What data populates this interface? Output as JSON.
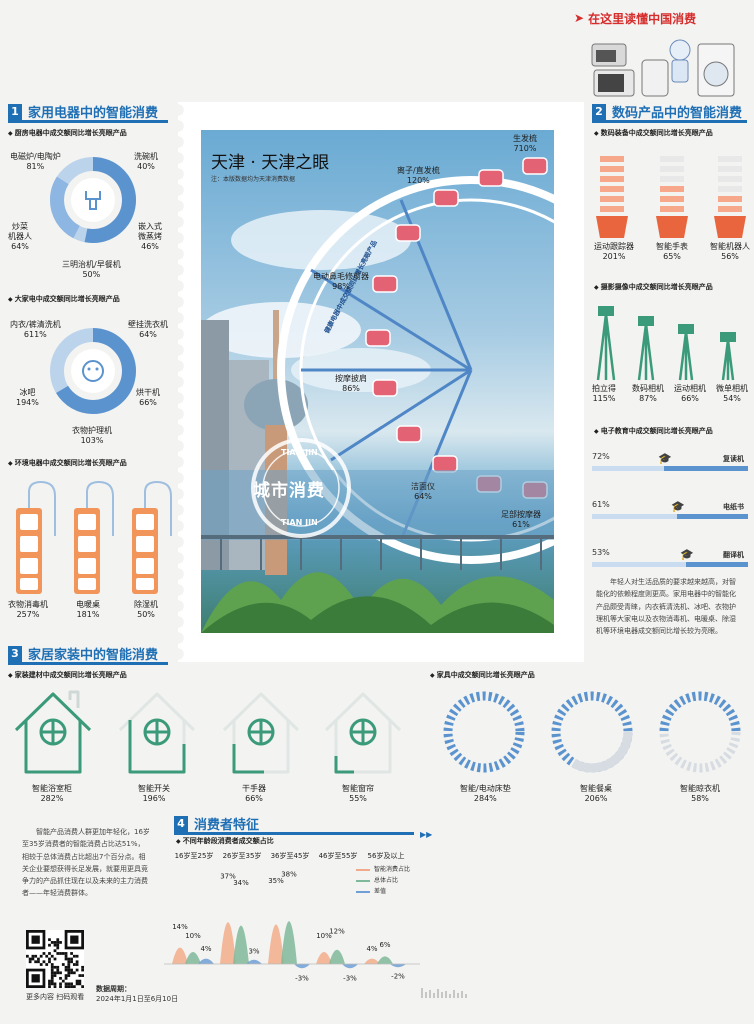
{
  "header": {
    "title": "在这里读懂中国消费"
  },
  "sections": {
    "s1": {
      "num": "1",
      "title": "家用电器中的智能消费"
    },
    "s2": {
      "num": "2",
      "title": "数码产品中的智能消费"
    },
    "s3": {
      "num": "3",
      "title": "家居家装中的智能消费"
    },
    "s4": {
      "num": "4",
      "title": "消费者特征"
    }
  },
  "kitchen": {
    "title": "厨房电器中成交额同比增长亮眼产品",
    "items": [
      {
        "name": "电磁炉/电陶炉",
        "value": "81%"
      },
      {
        "name": "洗碗机",
        "value": "40%"
      },
      {
        "name": "炒菜\n机器人",
        "value": "64%"
      },
      {
        "name": "嵌入式\n微蒸烤",
        "value": "46%"
      },
      {
        "name": "三明治机/早餐机",
        "value": "50%"
      }
    ]
  },
  "large_appliance": {
    "title": "大家电中成交额同比增长亮眼产品",
    "items": [
      {
        "name": "内衣/裤清洗机",
        "value": "611%"
      },
      {
        "name": "壁挂洗衣机",
        "value": "64%"
      },
      {
        "name": "冰吧",
        "value": "194%"
      },
      {
        "name": "烘干机",
        "value": "66%"
      },
      {
        "name": "衣物护理机",
        "value": "103%"
      }
    ]
  },
  "env_appliance": {
    "title": "环境电器中成交额同比增长亮眼产品",
    "items": [
      {
        "name": "衣物消毒机",
        "value": "257%"
      },
      {
        "name": "电暖桌",
        "value": "181%"
      },
      {
        "name": "除湿机",
        "value": "50%"
      }
    ]
  },
  "stamp": {
    "title": "天津 · 天津之眼",
    "note": "注：本版数据均为天津消费数据",
    "wheel_text": "健康电器中成交额同比增长亮眼产品",
    "seal_top": "TIAN JIN",
    "seal_mid": "城市消费",
    "seal_bottom": "TIAN JIN",
    "items": [
      {
        "name": "生发梳",
        "value": "710%"
      },
      {
        "name": "离子/直发梳",
        "value": "120%"
      },
      {
        "name": "电动鼻毛修剪器",
        "value": "98%"
      },
      {
        "name": "按摩披肩",
        "value": "86%"
      },
      {
        "name": "洁面仪",
        "value": "64%"
      },
      {
        "name": "足部按摩器",
        "value": "61%"
      }
    ]
  },
  "digital": {
    "title": "数码装备中成交额同比增长亮眼产品",
    "items": [
      {
        "name": "运动跟踪器",
        "value": "201%"
      },
      {
        "name": "智能手表",
        "value": "65%"
      },
      {
        "name": "智能机器人",
        "value": "56%"
      }
    ]
  },
  "camera": {
    "title": "摄影摄像中成交额同比增长亮眼产品",
    "items": [
      {
        "name": "拍立得",
        "value": "115%"
      },
      {
        "name": "数码相机",
        "value": "87%"
      },
      {
        "name": "运动相机",
        "value": "66%"
      },
      {
        "name": "微单相机",
        "value": "54%"
      }
    ]
  },
  "edu": {
    "title": "电子教育中成交额同比增长亮眼产品",
    "items": [
      {
        "name": "复读机",
        "value": "72%",
        "pct": 0.72
      },
      {
        "name": "电纸书",
        "value": "61%",
        "pct": 0.61
      },
      {
        "name": "翻译机",
        "value": "53%",
        "pct": 0.53
      }
    ]
  },
  "para_right": "年轻人对生活品质的要求越来越高，对智能化的依赖程度则更高。家用电器中的智能化产品颇受青睐，内衣裤清洗机、冰吧、衣物护理机等大家电以及衣物消毒机、电暖桌、除湿机等环境电器成交额同比增长较为亮眼。",
  "building": {
    "title": "家装建材中成交额同比增长亮眼产品",
    "items": [
      {
        "name": "智能浴室柜",
        "value": "282%"
      },
      {
        "name": "智能开关",
        "value": "196%"
      },
      {
        "name": "干手器",
        "value": "66%"
      },
      {
        "name": "智能窗帘",
        "value": "55%"
      }
    ]
  },
  "furniture": {
    "title": "家具中成交额同比增长亮眼产品",
    "items": [
      {
        "name": "智能/电动床垫",
        "value": "284%"
      },
      {
        "name": "智能餐桌",
        "value": "206%"
      },
      {
        "name": "智能晾衣机",
        "value": "58%"
      }
    ]
  },
  "para_left": "智能产品消费人群更加年轻化，16岁至35岁消费者的智能消费占比达51%，相较于总体消费占比超出7个百分点。相关企业要想获得长足发展，就要用更具竞争力的产品抓住现在以及未来的主力消费者——年轻消费群体。",
  "consumer": {
    "title": "不同年龄段消费者成交额占比",
    "legend": [
      "智能消费占比",
      "总体占比",
      "差值"
    ],
    "colors": [
      "#f2ab8a",
      "#7fb89a",
      "#6f9fd6"
    ]
  },
  "chart_data": {
    "type": "bar",
    "categories": [
      "16岁至25岁",
      "26岁至35岁",
      "36岁至45岁",
      "46岁至55岁",
      "56岁及以上"
    ],
    "series": [
      {
        "name": "智能消费占比",
        "values": [
          14,
          37,
          35,
          10,
          4
        ]
      },
      {
        "name": "总体占比",
        "values": [
          10,
          34,
          38,
          12,
          6
        ]
      },
      {
        "name": "差值",
        "values": [
          4,
          3,
          -3,
          -3,
          -2
        ]
      }
    ],
    "labels": [
      [
        "14%",
        "10%",
        "4%"
      ],
      [
        "37%",
        "34%",
        "3%"
      ],
      [
        "35%",
        "38%",
        "-3%"
      ],
      [
        "10%",
        "12%",
        "-3%"
      ],
      [
        "4%",
        "6%",
        "-2%"
      ]
    ]
  },
  "footer": {
    "qr_caption": "更多内容 扫码观看",
    "period_label": "数据周期：",
    "period": "2024年1月1日至6月10日"
  }
}
